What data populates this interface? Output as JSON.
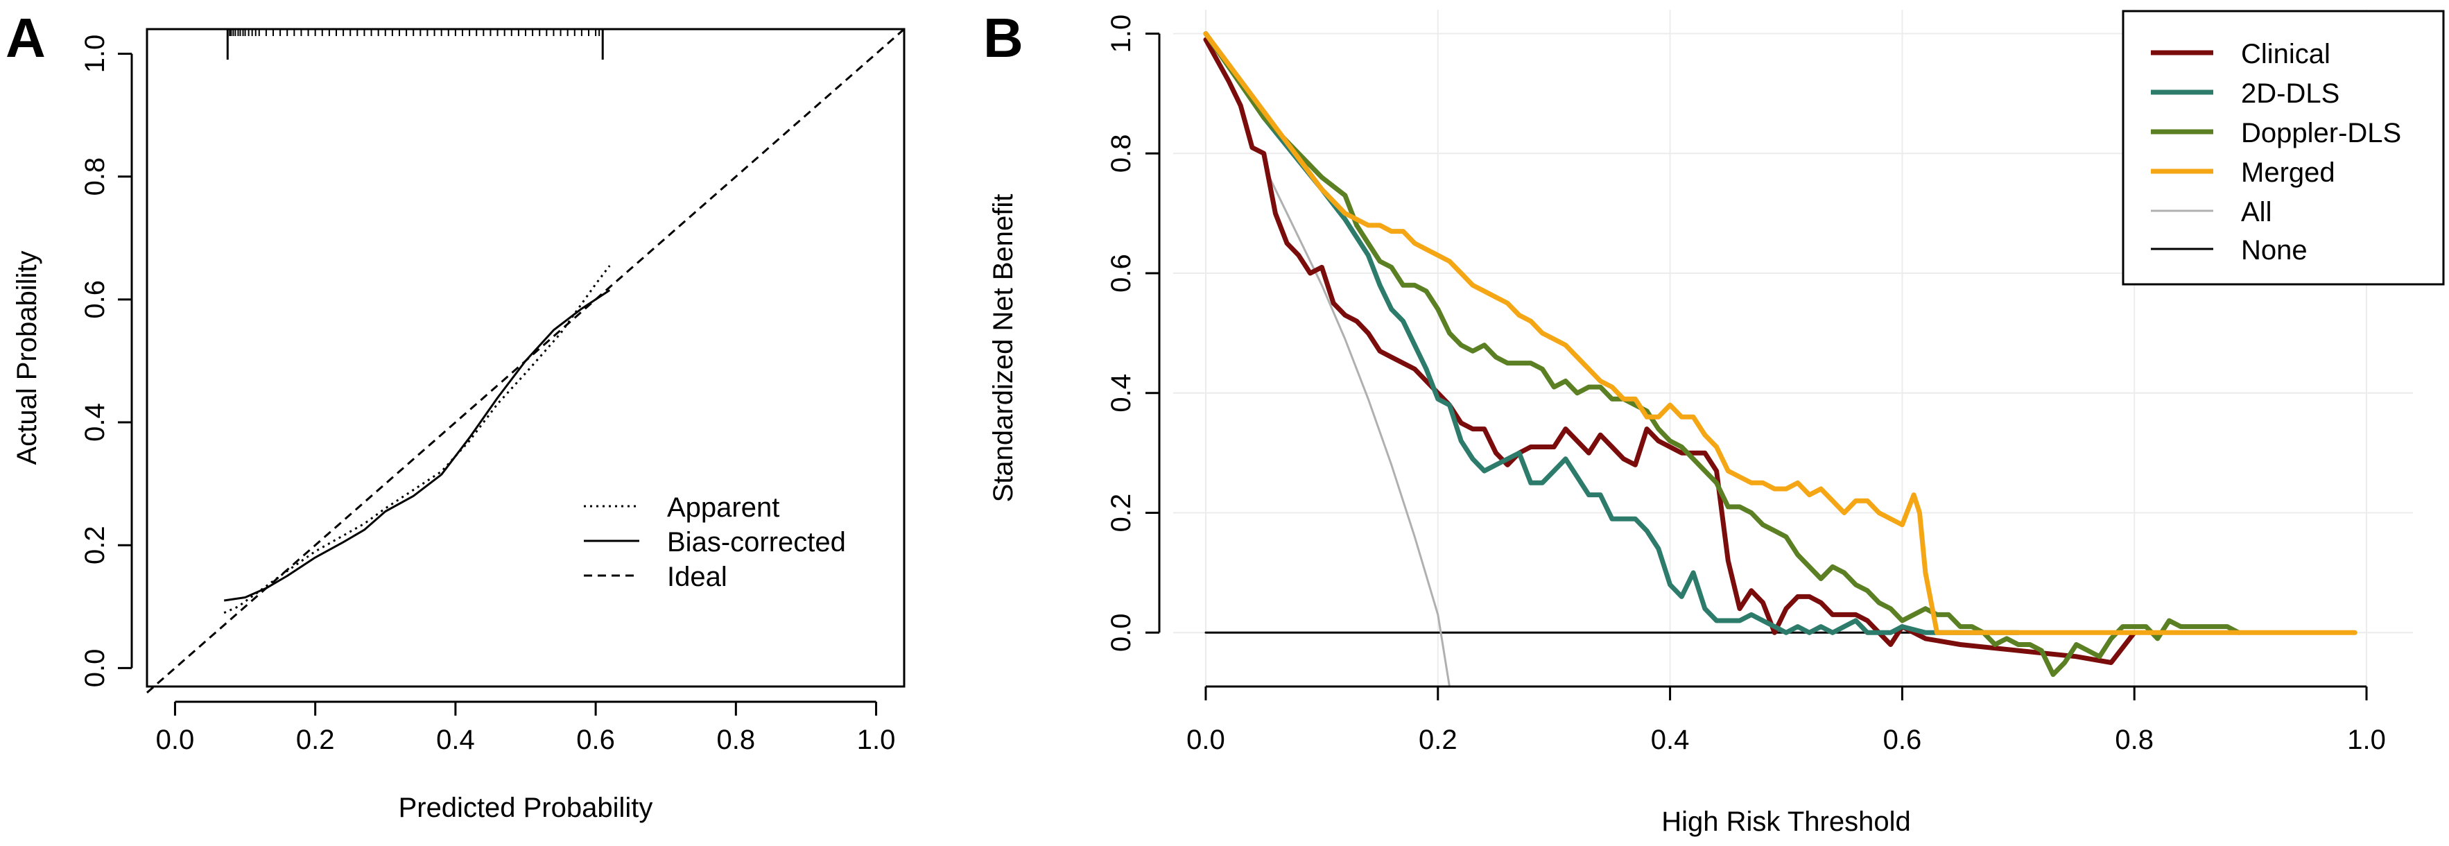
{
  "colors": {
    "clinical": "#7b0c0c",
    "dls2d": "#2d7c6b",
    "doppler": "#5b7f23",
    "merged": "#f5a614",
    "all": "#b0b0b0",
    "none": "#000000",
    "grid": "#ececec"
  },
  "chart_data": [
    {
      "id": "A",
      "panel_label": "A",
      "type": "line",
      "title": "",
      "xlabel": "Predicted Probability",
      "ylabel": "Actual Probability",
      "xlim": [
        -0.04,
        1.04
      ],
      "ylim": [
        -0.03,
        1.04
      ],
      "xticks": [
        0.0,
        0.2,
        0.4,
        0.6,
        0.8,
        1.0
      ],
      "xtick_labels": [
        "0.0",
        "0.2",
        "0.4",
        "0.6",
        "0.8",
        "1.0"
      ],
      "yticks": [
        0.0,
        0.2,
        0.4,
        0.6,
        0.8,
        1.0
      ],
      "ytick_labels": [
        "0.0",
        "0.2",
        "0.4",
        "0.6",
        "0.8",
        "1.0"
      ],
      "grid": false,
      "legend": {
        "position": "bottom-right",
        "entries": [
          "Apparent",
          "Bias-corrected",
          "Ideal"
        ]
      },
      "series": [
        {
          "name": "Apparent",
          "style": "dotted",
          "x": [
            0.07,
            0.09,
            0.12,
            0.15,
            0.2,
            0.27,
            0.3,
            0.34,
            0.38,
            0.42,
            0.46,
            0.5,
            0.55,
            0.6,
            0.62
          ],
          "y": [
            0.09,
            0.1,
            0.125,
            0.15,
            0.19,
            0.235,
            0.26,
            0.29,
            0.32,
            0.37,
            0.43,
            0.48,
            0.545,
            0.625,
            0.655
          ]
        },
        {
          "name": "Bias-corrected",
          "style": "solid",
          "x": [
            0.07,
            0.1,
            0.13,
            0.16,
            0.2,
            0.24,
            0.27,
            0.3,
            0.34,
            0.38,
            0.42,
            0.46,
            0.5,
            0.54,
            0.58,
            0.62
          ],
          "y": [
            0.11,
            0.115,
            0.13,
            0.15,
            0.18,
            0.205,
            0.225,
            0.255,
            0.28,
            0.315,
            0.375,
            0.44,
            0.5,
            0.55,
            0.585,
            0.615
          ]
        },
        {
          "name": "Ideal",
          "style": "dashed",
          "x": [
            -0.04,
            1.04
          ],
          "y": [
            -0.04,
            1.04
          ]
        }
      ],
      "rug_x": [
        0.075,
        0.078,
        0.08,
        0.083,
        0.086,
        0.09,
        0.093,
        0.097,
        0.1,
        0.105,
        0.11,
        0.115,
        0.12,
        0.13,
        0.14,
        0.15,
        0.16,
        0.17,
        0.18,
        0.19,
        0.2,
        0.21,
        0.22,
        0.23,
        0.24,
        0.25,
        0.26,
        0.27,
        0.28,
        0.29,
        0.3,
        0.31,
        0.32,
        0.33,
        0.34,
        0.35,
        0.36,
        0.37,
        0.38,
        0.39,
        0.4,
        0.41,
        0.42,
        0.43,
        0.44,
        0.45,
        0.46,
        0.47,
        0.48,
        0.49,
        0.5,
        0.51,
        0.52,
        0.53,
        0.54,
        0.55,
        0.56,
        0.57,
        0.58,
        0.59,
        0.6,
        0.605
      ],
      "rug_long_x": [
        0.075,
        0.61
      ]
    },
    {
      "id": "B",
      "panel_label": "B",
      "type": "line",
      "title": "",
      "xlabel": "High Risk Threshold",
      "ylabel": "Standardized Net Benefit",
      "xlim": [
        -0.04,
        1.04
      ],
      "ylim": [
        -0.09,
        1.04
      ],
      "xticks": [
        0.0,
        0.2,
        0.4,
        0.6,
        0.8,
        1.0
      ],
      "xtick_labels": [
        "0.0",
        "0.2",
        "0.4",
        "0.6",
        "0.8",
        "1.0"
      ],
      "yticks": [
        0.0,
        0.2,
        0.4,
        0.6,
        0.8,
        1.0
      ],
      "ytick_labels": [
        "0.0",
        "0.2",
        "0.4",
        "0.6",
        "0.8",
        "1.0"
      ],
      "grid": true,
      "legend": {
        "position": "top-right",
        "entries": [
          "Clinical",
          "2D-DLS",
          "Doppler-DLS",
          "Merged",
          "All",
          "None"
        ]
      },
      "series": [
        {
          "name": "Clinical",
          "color_key": "clinical",
          "width": 7,
          "x": [
            0.0,
            0.02,
            0.03,
            0.04,
            0.05,
            0.06,
            0.07,
            0.08,
            0.09,
            0.1,
            0.11,
            0.12,
            0.13,
            0.14,
            0.15,
            0.16,
            0.17,
            0.18,
            0.19,
            0.2,
            0.21,
            0.22,
            0.23,
            0.24,
            0.25,
            0.26,
            0.27,
            0.28,
            0.29,
            0.3,
            0.31,
            0.32,
            0.33,
            0.34,
            0.35,
            0.36,
            0.37,
            0.38,
            0.39,
            0.4,
            0.41,
            0.42,
            0.43,
            0.44,
            0.45,
            0.46,
            0.47,
            0.48,
            0.49,
            0.5,
            0.51,
            0.52,
            0.53,
            0.54,
            0.55,
            0.56,
            0.57,
            0.58,
            0.59,
            0.6,
            0.62,
            0.65,
            0.7,
            0.75,
            0.78,
            0.8
          ],
          "y": [
            0.99,
            0.92,
            0.88,
            0.81,
            0.8,
            0.7,
            0.65,
            0.63,
            0.6,
            0.61,
            0.55,
            0.53,
            0.52,
            0.5,
            0.47,
            0.46,
            0.45,
            0.44,
            0.42,
            0.4,
            0.38,
            0.35,
            0.34,
            0.34,
            0.3,
            0.28,
            0.3,
            0.31,
            0.31,
            0.31,
            0.34,
            0.32,
            0.3,
            0.33,
            0.31,
            0.29,
            0.28,
            0.34,
            0.32,
            0.31,
            0.3,
            0.3,
            0.3,
            0.27,
            0.12,
            0.04,
            0.07,
            0.05,
            0.0,
            0.04,
            0.06,
            0.06,
            0.05,
            0.03,
            0.03,
            0.03,
            0.02,
            0.0,
            -0.02,
            0.01,
            -0.01,
            -0.02,
            -0.03,
            -0.04,
            -0.05,
            0.0
          ]
        },
        {
          "name": "2D-DLS",
          "color_key": "dls2d",
          "width": 7,
          "x": [
            0.0,
            0.05,
            0.1,
            0.12,
            0.14,
            0.15,
            0.16,
            0.17,
            0.18,
            0.19,
            0.2,
            0.21,
            0.22,
            0.23,
            0.24,
            0.25,
            0.26,
            0.27,
            0.28,
            0.29,
            0.3,
            0.31,
            0.32,
            0.33,
            0.34,
            0.35,
            0.36,
            0.37,
            0.38,
            0.39,
            0.4,
            0.41,
            0.42,
            0.43,
            0.44,
            0.45,
            0.46,
            0.47,
            0.48,
            0.49,
            0.5,
            0.51,
            0.52,
            0.53,
            0.54,
            0.55,
            0.56,
            0.57,
            0.58,
            0.59,
            0.6,
            0.62,
            0.65,
            0.7
          ],
          "y": [
            1.0,
            0.86,
            0.74,
            0.69,
            0.63,
            0.58,
            0.54,
            0.52,
            0.48,
            0.44,
            0.39,
            0.38,
            0.32,
            0.29,
            0.27,
            0.28,
            0.29,
            0.3,
            0.25,
            0.25,
            0.27,
            0.29,
            0.26,
            0.23,
            0.23,
            0.19,
            0.19,
            0.19,
            0.17,
            0.14,
            0.08,
            0.06,
            0.1,
            0.04,
            0.02,
            0.02,
            0.02,
            0.03,
            0.02,
            0.01,
            0.0,
            0.01,
            0.0,
            0.01,
            0.0,
            0.01,
            0.02,
            0.0,
            0.0,
            0.0,
            0.01,
            0.0,
            0.0,
            0.0
          ]
        },
        {
          "name": "Doppler-DLS",
          "color_key": "doppler",
          "width": 7,
          "x": [
            0.0,
            0.05,
            0.1,
            0.12,
            0.13,
            0.14,
            0.15,
            0.16,
            0.17,
            0.18,
            0.19,
            0.2,
            0.21,
            0.22,
            0.23,
            0.24,
            0.25,
            0.26,
            0.27,
            0.28,
            0.29,
            0.3,
            0.31,
            0.32,
            0.33,
            0.34,
            0.35,
            0.36,
            0.37,
            0.38,
            0.39,
            0.4,
            0.41,
            0.42,
            0.43,
            0.44,
            0.45,
            0.46,
            0.47,
            0.48,
            0.49,
            0.5,
            0.51,
            0.52,
            0.53,
            0.54,
            0.55,
            0.56,
            0.57,
            0.58,
            0.59,
            0.6,
            0.61,
            0.62,
            0.63,
            0.64,
            0.65,
            0.66,
            0.67,
            0.68,
            0.69,
            0.7,
            0.71,
            0.72,
            0.73,
            0.74,
            0.75,
            0.76,
            0.77,
            0.78,
            0.79,
            0.8,
            0.81,
            0.82,
            0.83,
            0.84,
            0.86,
            0.88,
            0.89
          ],
          "y": [
            1.0,
            0.86,
            0.76,
            0.73,
            0.68,
            0.65,
            0.62,
            0.61,
            0.58,
            0.58,
            0.57,
            0.54,
            0.5,
            0.48,
            0.47,
            0.48,
            0.46,
            0.45,
            0.45,
            0.45,
            0.44,
            0.41,
            0.42,
            0.4,
            0.41,
            0.41,
            0.39,
            0.39,
            0.38,
            0.37,
            0.34,
            0.32,
            0.31,
            0.29,
            0.27,
            0.25,
            0.21,
            0.21,
            0.2,
            0.18,
            0.17,
            0.16,
            0.13,
            0.11,
            0.09,
            0.11,
            0.1,
            0.08,
            0.07,
            0.05,
            0.04,
            0.02,
            0.03,
            0.04,
            0.03,
            0.03,
            0.01,
            0.01,
            0.0,
            -0.02,
            -0.01,
            -0.02,
            -0.02,
            -0.03,
            -0.07,
            -0.05,
            -0.02,
            -0.03,
            -0.04,
            -0.01,
            0.01,
            0.01,
            0.01,
            -0.01,
            0.02,
            0.01,
            0.01,
            0.01,
            0.0
          ]
        },
        {
          "name": "Merged",
          "color_key": "merged",
          "width": 7,
          "x": [
            0.0,
            0.05,
            0.1,
            0.12,
            0.14,
            0.15,
            0.16,
            0.17,
            0.18,
            0.19,
            0.2,
            0.21,
            0.22,
            0.23,
            0.24,
            0.25,
            0.26,
            0.27,
            0.28,
            0.29,
            0.3,
            0.31,
            0.32,
            0.33,
            0.34,
            0.35,
            0.36,
            0.37,
            0.38,
            0.39,
            0.4,
            0.41,
            0.42,
            0.43,
            0.44,
            0.45,
            0.46,
            0.47,
            0.48,
            0.49,
            0.5,
            0.51,
            0.52,
            0.53,
            0.54,
            0.55,
            0.56,
            0.57,
            0.58,
            0.59,
            0.6,
            0.61,
            0.615,
            0.62,
            0.63,
            0.7,
            0.8,
            0.9,
            0.99
          ],
          "y": [
            1.0,
            0.87,
            0.74,
            0.7,
            0.68,
            0.68,
            0.67,
            0.67,
            0.65,
            0.64,
            0.63,
            0.62,
            0.6,
            0.58,
            0.57,
            0.56,
            0.55,
            0.53,
            0.52,
            0.5,
            0.49,
            0.48,
            0.46,
            0.44,
            0.42,
            0.41,
            0.39,
            0.39,
            0.36,
            0.36,
            0.38,
            0.36,
            0.36,
            0.33,
            0.31,
            0.27,
            0.26,
            0.25,
            0.25,
            0.24,
            0.24,
            0.25,
            0.23,
            0.24,
            0.22,
            0.2,
            0.22,
            0.22,
            0.2,
            0.19,
            0.18,
            0.23,
            0.2,
            0.1,
            0.0,
            0.0,
            0.0,
            0.0,
            0.0
          ]
        },
        {
          "name": "All",
          "color_key": "all",
          "width": 3,
          "x": [
            0.055,
            0.08,
            0.1,
            0.12,
            0.14,
            0.16,
            0.18,
            0.2,
            0.21
          ],
          "y": [
            0.76,
            0.66,
            0.58,
            0.49,
            0.39,
            0.28,
            0.16,
            0.03,
            -0.09
          ]
        },
        {
          "name": "None",
          "color_key": "none",
          "width": 3,
          "x": [
            0.0,
            0.99
          ],
          "y": [
            0.0,
            0.0
          ]
        }
      ]
    }
  ]
}
